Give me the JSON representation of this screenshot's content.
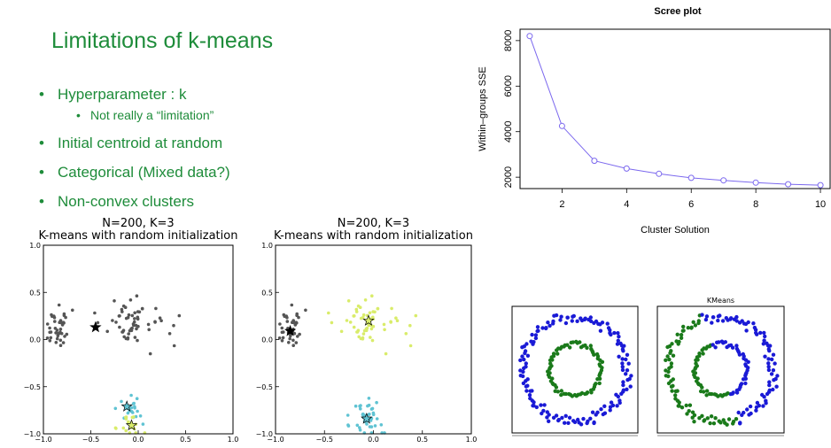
{
  "slide": {
    "title": "Limitations of k-means",
    "bullets": [
      {
        "text": "Hyperparameter : k",
        "sub": [
          "Not really a “limitation”"
        ]
      },
      {
        "text": "Initial centroid at random"
      },
      {
        "text": "Categorical (Mixed data?)"
      },
      {
        "text": "Non-convex clusters"
      }
    ]
  },
  "colors": {
    "text_green": "#1e8c3a",
    "scree_line": "#7b68ee",
    "cluster_blue": "#1a1ad6",
    "cluster_green": "#1a7a1a",
    "cluster_black": "#555555",
    "cluster_yellow": "#d9ec6a",
    "cluster_cyan": "#5fc3d3"
  },
  "chart_data": [
    {
      "type": "scatter",
      "title": [
        "N=200, K=3",
        "K-means with random initialization"
      ],
      "xlim": [
        -1.0,
        1.0
      ],
      "ylim": [
        -1.0,
        1.0
      ],
      "xticks": [
        "−1.0",
        "−0.5",
        "0.0",
        "0.5",
        "1.0"
      ],
      "yticks": [
        "1.0",
        "0.5",
        "0.0",
        "−0.5",
        "−1.0"
      ],
      "clusters": [
        {
          "color": "#555555",
          "center": [
            -0.85,
            0.1
          ],
          "spread": [
            0.06,
            0.1
          ],
          "n": 40
        },
        {
          "color": "#555555",
          "center": [
            -0.05,
            0.18
          ],
          "spread": [
            0.18,
            0.12
          ],
          "n": 60
        },
        {
          "color": "#5fc3d3",
          "center": [
            -0.1,
            -0.76
          ],
          "spread": [
            0.07,
            0.07
          ],
          "n": 22
        },
        {
          "color": "#d9ec6a",
          "center": [
            -0.08,
            -0.9
          ],
          "spread": [
            0.08,
            0.05
          ],
          "n": 20
        }
      ],
      "centroids": [
        {
          "x": -0.45,
          "y": 0.13,
          "fill": "#000000"
        },
        {
          "x": -0.12,
          "y": -0.71,
          "fill": "#5fc3d3"
        },
        {
          "x": -0.07,
          "y": -0.91,
          "fill": "#d9ec6a"
        }
      ]
    },
    {
      "type": "scatter",
      "title": [
        "N=200, K=3",
        "K-means with random initialization"
      ],
      "xlim": [
        -1.0,
        1.0
      ],
      "ylim": [
        -1.0,
        1.0
      ],
      "xticks": [
        "−1.0",
        "−0.5",
        "0.0",
        "0.5",
        "1.0"
      ],
      "yticks": [
        "1.0",
        "0.5",
        "0.0",
        "−0.5",
        "−1.0"
      ],
      "clusters": [
        {
          "color": "#555555",
          "center": [
            -0.85,
            0.1
          ],
          "spread": [
            0.06,
            0.1
          ],
          "n": 40
        },
        {
          "color": "#d9ec6a",
          "center": [
            -0.05,
            0.18
          ],
          "spread": [
            0.18,
            0.12
          ],
          "n": 60
        },
        {
          "color": "#5fc3d3",
          "center": [
            -0.08,
            -0.84
          ],
          "spread": [
            0.09,
            0.09
          ],
          "n": 42
        }
      ],
      "centroids": [
        {
          "x": -0.85,
          "y": 0.09,
          "fill": "#000000"
        },
        {
          "x": -0.05,
          "y": 0.2,
          "fill": "#d9ec6a"
        },
        {
          "x": -0.07,
          "y": -0.84,
          "fill": "#5fc3d3"
        }
      ]
    },
    {
      "type": "line",
      "title": "Scree plot",
      "xlabel": "Cluster Solution",
      "ylabel": "Within–groups SSE",
      "x": [
        1,
        2,
        3,
        4,
        5,
        6,
        7,
        8,
        9,
        10
      ],
      "y": [
        8200,
        4250,
        2720,
        2380,
        2150,
        1970,
        1860,
        1760,
        1690,
        1650
      ],
      "xlim": [
        0.7,
        10.3
      ],
      "ylim": [
        1500,
        8500
      ],
      "xticks": [
        2,
        4,
        6,
        8,
        10
      ],
      "yticks": [
        2000,
        4000,
        6000,
        8000
      ]
    },
    {
      "type": "scatter",
      "title": "",
      "rings": [
        {
          "color": "#1a1ad6",
          "r": 1.0,
          "n": 150
        },
        {
          "color": "#1a7a1a",
          "r": 0.5,
          "n": 80
        }
      ]
    },
    {
      "type": "scatter",
      "title": "KMeans",
      "rings": [
        {
          "color": "#1a1ad6",
          "r": 1.0,
          "n": 150
        },
        {
          "color": "#1a7a1a",
          "r": 0.5,
          "n": 80
        }
      ]
    }
  ]
}
